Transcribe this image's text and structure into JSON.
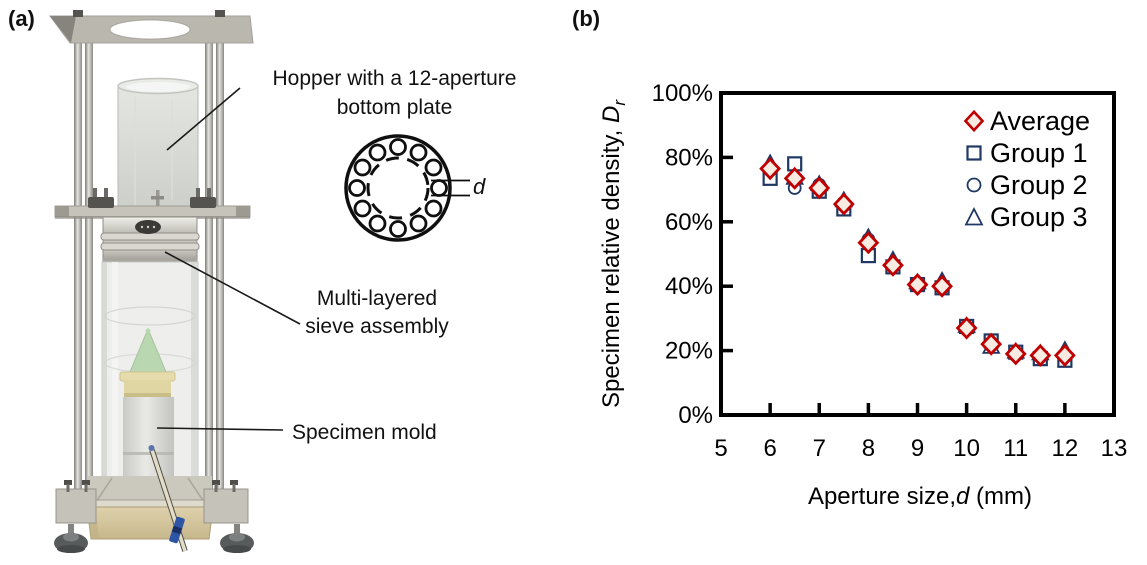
{
  "panel_a": {
    "label": "(a)",
    "annotations": {
      "hopper_line1": "Hopper with a 12-aperture",
      "hopper_line2": "bottom plate",
      "sieve_line1": "Multi-layered",
      "sieve_line2": "sieve assembly",
      "mold": "Specimen mold",
      "aperture_dim_label": "d"
    }
  },
  "panel_b": {
    "label": "(b)"
  },
  "chart_data": {
    "type": "scatter",
    "title": "",
    "xlabel": {
      "prefix": "Aperture size,",
      "variable": "d",
      "suffix": " (mm)"
    },
    "ylabel": {
      "prefix": "Specimen relative density, ",
      "variable": "D",
      "subscript": "r"
    },
    "xlim": [
      5,
      13
    ],
    "ylim_percent": [
      0,
      100
    ],
    "x_ticks": [
      5,
      6,
      7,
      8,
      9,
      10,
      11,
      12,
      13
    ],
    "y_ticks_percent": [
      0,
      20,
      40,
      60,
      80,
      100
    ],
    "y_tick_suffix": "%",
    "grid": false,
    "legend_position": "top-right-inside",
    "frame_color": "#000000",
    "x_values_mm": [
      6,
      6.5,
      7,
      7.5,
      8,
      8.5,
      9,
      9.5,
      10,
      10.5,
      11,
      11.5,
      12
    ],
    "series": [
      {
        "name": "Average",
        "marker": "diamond",
        "color": "#c00000",
        "fill": "#f8ece2",
        "values_percent": [
          76.5,
          73.5,
          70.5,
          65.5,
          53.5,
          46.5,
          40.5,
          40,
          27,
          22,
          19,
          18.5,
          18.5
        ]
      },
      {
        "name": "Group 1",
        "marker": "square",
        "color": "#1f3864",
        "fill": "none",
        "values_percent": [
          73.5,
          78,
          69.5,
          64,
          49.5,
          46,
          40.5,
          39.5,
          27.5,
          23,
          19.5,
          17.5,
          17
        ]
      },
      {
        "name": "Group 2",
        "marker": "circle",
        "color": "#1f3864",
        "fill": "none",
        "values_percent": [
          76,
          70.5,
          71.5,
          66,
          54.5,
          46.5,
          40,
          39.5,
          26.5,
          22,
          18.5,
          18.5,
          18.5
        ]
      },
      {
        "name": "Group 3",
        "marker": "triangle",
        "color": "#1f3864",
        "fill": "none",
        "values_percent": [
          78,
          73.5,
          71.5,
          66.5,
          55,
          48,
          41,
          41.5,
          27.5,
          21,
          19.5,
          19,
          20
        ]
      }
    ]
  }
}
